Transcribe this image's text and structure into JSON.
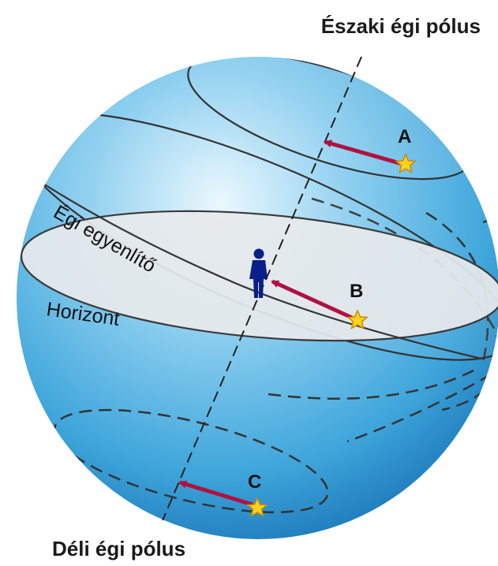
{
  "labels": {
    "north_pole": "Északi égi pólus",
    "south_pole": "Déli égi pólus",
    "celestial_equator": "Égi egyenlítő",
    "horizon": "Horizont"
  },
  "stars": [
    {
      "letter": "A"
    },
    {
      "letter": "B"
    },
    {
      "letter": "C"
    }
  ],
  "colors": {
    "sphere_light": "#d9f0fb",
    "sphere_mid": "#5cb8e6",
    "sphere_dark": "#1f7fc0",
    "horizon_fill": "#e6e9ec",
    "arrow": "#b0123f",
    "star_fill": "#ffd21f",
    "star_stroke": "#c98a00",
    "observer": "#0b1f8a",
    "orbit_stroke": "#333333"
  },
  "icons": {
    "observer": "person-icon",
    "star": "star-icon"
  }
}
